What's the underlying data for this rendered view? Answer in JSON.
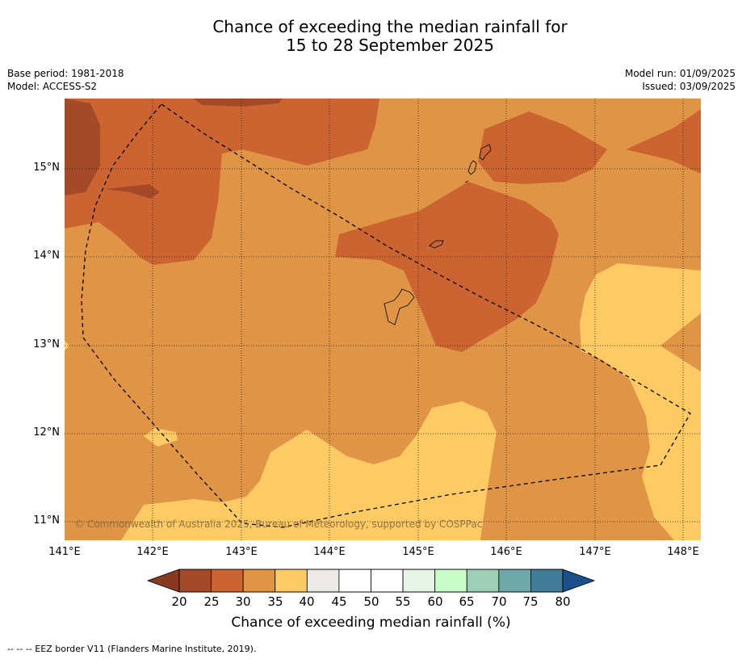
{
  "title": {
    "line1": "Chance of exceeding the median rainfall for",
    "line2": "15 to 28 September 2025"
  },
  "meta": {
    "base_period": "Base period: 1981-2018",
    "model": "Model: ACCESS-S2",
    "model_run": "Model run: 01/09/2025",
    "issued": "Issued: 03/09/2025"
  },
  "map": {
    "lon_labels": [
      "141°E",
      "142°E",
      "143°E",
      "144°E",
      "145°E",
      "146°E",
      "147°E",
      "148°E"
    ],
    "lat_labels": [
      "15°N",
      "14°N",
      "13°N",
      "12°N",
      "11°N"
    ],
    "copyright": "© Commonwealth of Australia 2025, Bureau of Meteorology, supported by COSPPac"
  },
  "colorbar": {
    "title": "Chance of exceeding median rainfall (%)",
    "ticks": [
      "20",
      "25",
      "30",
      "35",
      "40",
      "45",
      "50",
      "55",
      "60",
      "65",
      "70",
      "75",
      "80"
    ],
    "colors": [
      "#a54a28",
      "#cc6431",
      "#e09446",
      "#fdca63",
      "#eceae6",
      "#ffffff",
      "#ffffff",
      "#e6f5e6",
      "#c8fcc8",
      "#9ccfb5",
      "#6ea7a7",
      "#417c98"
    ],
    "low_extend_color": "#8a3920",
    "high_extend_color": "#1b4f8a"
  },
  "footer": "--  --  -- EEZ border V11 (Flanders Marine Institute, 2019)."
}
